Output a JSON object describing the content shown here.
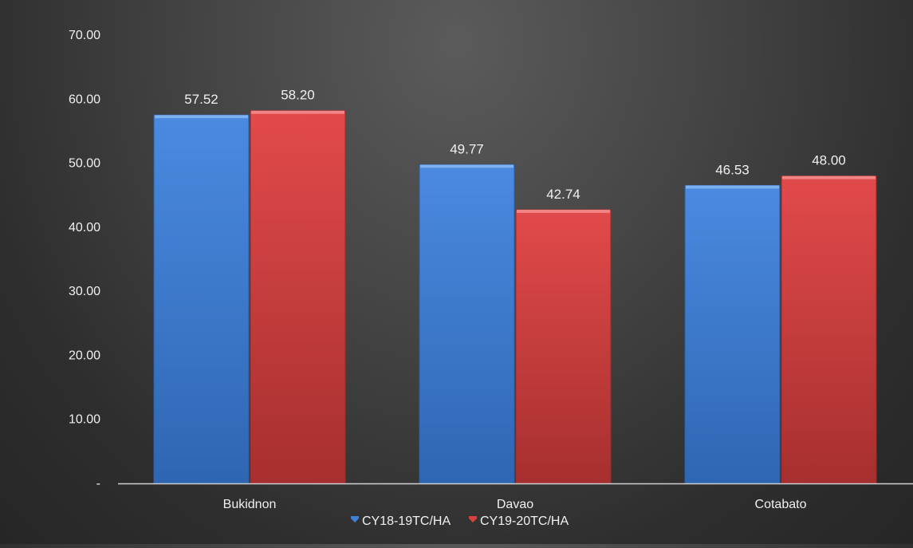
{
  "chart_data": {
    "type": "bar",
    "title": "",
    "xlabel": "",
    "ylabel": "",
    "categories": [
      "Bukidnon",
      "Davao",
      "Cotabato"
    ],
    "series": [
      {
        "name": "CY18-19TC/HA",
        "values": [
          57.52,
          49.77,
          46.53
        ],
        "labels": [
          "57.52",
          "49.77",
          "46.53"
        ],
        "color": "#3f7fd6"
      },
      {
        "name": "CY19-20TC/HA",
        "values": [
          58.2,
          42.74,
          48.0
        ],
        "labels": [
          "58.20",
          "42.74",
          "48.00"
        ],
        "color": "#d94040"
      }
    ],
    "ylim": [
      0,
      70
    ],
    "yticks": [
      0,
      10,
      20,
      30,
      40,
      50,
      60,
      70
    ],
    "ytick_labels": [
      "-",
      "10.00",
      "20.00",
      "30.00",
      "40.00",
      "50.00",
      "60.00",
      "70.00"
    ],
    "grid": false,
    "legend_position": "bottom"
  }
}
